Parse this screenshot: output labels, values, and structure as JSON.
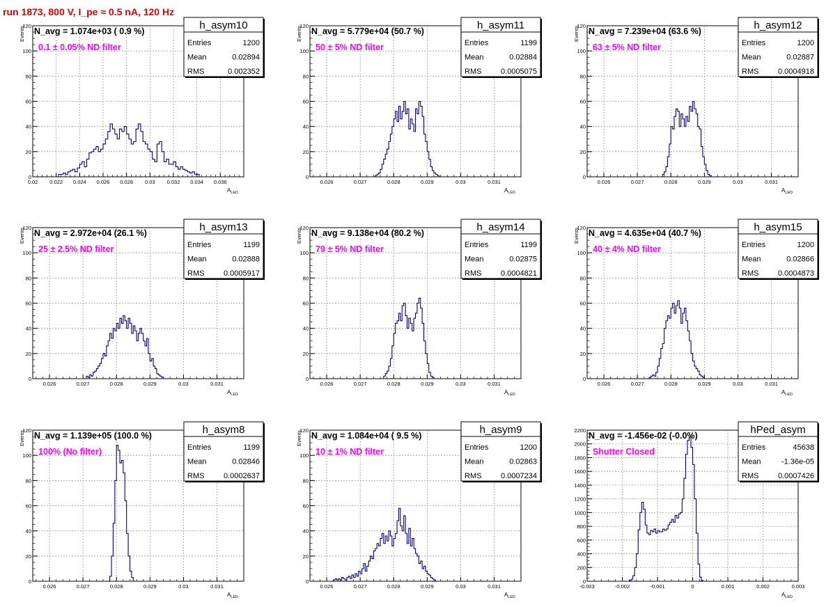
{
  "run_title": "run 1873,   800 V, I_pe ≈ 0.5 nA, 120 Hz",
  "line_color": "#000080",
  "note_color": "#ff00ff",
  "stats_labels": [
    "Entries",
    "Mean",
    "RMS"
  ],
  "chart_data": [
    {
      "type": "histogram",
      "name": "h_asym10",
      "navg": "N_avg = 1.074e+03 ( 0.9 %)",
      "note": "0.1 ± 0.05% ND filter",
      "stats": {
        "Entries": "1200",
        "Mean": "0.02894",
        "RMS": "0.002352"
      },
      "xlim": [
        0.02,
        0.038
      ],
      "xticks": [
        0.02,
        0.022,
        0.024,
        0.026,
        0.028,
        0.03,
        0.032,
        0.034,
        0.036
      ],
      "xtick_labels": [
        "0.02",
        "0.022",
        "0.024",
        "0.026",
        "0.028",
        "0.03",
        "0.032",
        "0.034",
        "0.036"
      ],
      "ylim": [
        0,
        120
      ],
      "yticks": [
        0,
        20,
        40,
        60,
        80,
        100,
        120
      ],
      "ytick_labels": [
        "0",
        "20",
        "40",
        "60",
        "80",
        "100",
        "120"
      ],
      "xlabel": "A",
      "xlabel_sub": "LED",
      "ylabel": "Events",
      "bins_x0": 0.0222,
      "bin_width": 0.0002,
      "counts": [
        2,
        2,
        3,
        2,
        4,
        5,
        6,
        4,
        7,
        10,
        12,
        8,
        14,
        19,
        20,
        22,
        24,
        20,
        22,
        26,
        30,
        36,
        42,
        38,
        34,
        30,
        38,
        36,
        40,
        34,
        30,
        26,
        28,
        38,
        42,
        36,
        28,
        26,
        22,
        20,
        14,
        12,
        26,
        28,
        20,
        12,
        14,
        10,
        10,
        12,
        8,
        6,
        8,
        6,
        5,
        4,
        3,
        4,
        2,
        2
      ]
    },
    {
      "type": "histogram",
      "name": "h_asym11",
      "navg": "N_avg = 5.779e+04 (50.7 %)",
      "note": "50 ± 5% ND filter",
      "stats": {
        "Entries": "1199",
        "Mean": "0.02884",
        "RMS": "0.0005075"
      },
      "xlim": [
        0.0255,
        0.0318
      ],
      "xticks": [
        0.026,
        0.027,
        0.028,
        0.029,
        0.03,
        0.031
      ],
      "xtick_labels": [
        "0.026",
        "0.027",
        "0.028",
        "0.029",
        "0.03",
        "0.031"
      ],
      "ylim": [
        0,
        120
      ],
      "yticks": [
        0,
        20,
        40,
        60,
        80,
        100,
        120
      ],
      "ytick_labels": [
        "0",
        "20",
        "40",
        "60",
        "80",
        "100",
        "120"
      ],
      "xlabel": "A",
      "xlabel_sub": "LED",
      "ylabel": "Events",
      "bins_x0": 0.02745,
      "bin_width": 5e-05,
      "counts": [
        1,
        2,
        3,
        6,
        10,
        14,
        18,
        22,
        28,
        34,
        40,
        46,
        52,
        44,
        56,
        46,
        52,
        60,
        50,
        54,
        38,
        46,
        42,
        36,
        54,
        50,
        60,
        56,
        48,
        34,
        28,
        20,
        14,
        8,
        5,
        3,
        2,
        1
      ]
    },
    {
      "type": "histogram",
      "name": "h_asym12",
      "navg": "N_avg = 7.239e+04 (63.6 %)",
      "note": "63 ± 5% ND filter",
      "stats": {
        "Entries": "1200",
        "Mean": "0.02887",
        "RMS": "0.0004918"
      },
      "xlim": [
        0.0255,
        0.0318
      ],
      "xticks": [
        0.026,
        0.027,
        0.028,
        0.029,
        0.03,
        0.031
      ],
      "xtick_labels": [
        "0.026",
        "0.027",
        "0.028",
        "0.029",
        "0.03",
        "0.031"
      ],
      "ylim": [
        0,
        120
      ],
      "yticks": [
        0,
        20,
        40,
        60,
        80,
        100,
        120
      ],
      "ytick_labels": [
        "0",
        "20",
        "40",
        "60",
        "80",
        "100",
        "120"
      ],
      "xlabel": "A",
      "xlabel_sub": "LED",
      "ylabel": "Events",
      "bins_x0": 0.02775,
      "bin_width": 5e-05,
      "counts": [
        2,
        4,
        8,
        16,
        26,
        40,
        38,
        48,
        54,
        52,
        40,
        50,
        46,
        40,
        48,
        44,
        56,
        52,
        60,
        54,
        50,
        40,
        38,
        24,
        16,
        10,
        5,
        2,
        1
      ]
    },
    {
      "type": "histogram",
      "name": "h_asym13",
      "navg": "N_avg = 2.972e+04 (26.1 %)",
      "note": "25 ± 2.5% ND filter",
      "stats": {
        "Entries": "1199",
        "Mean": "0.02888",
        "RMS": "0.0005917"
      },
      "xlim": [
        0.0255,
        0.0318
      ],
      "xticks": [
        0.026,
        0.027,
        0.028,
        0.029,
        0.03,
        0.031
      ],
      "xtick_labels": [
        "0.026",
        "0.027",
        "0.028",
        "0.029",
        "0.03",
        "0.031"
      ],
      "ylim": [
        0,
        120
      ],
      "yticks": [
        0,
        20,
        40,
        60,
        80,
        100,
        120
      ],
      "ytick_labels": [
        "0",
        "20",
        "40",
        "60",
        "80",
        "100",
        "120"
      ],
      "xlabel": "A",
      "xlabel_sub": "LED",
      "ylabel": "Events",
      "bins_x0": 0.0271,
      "bin_width": 5e-05,
      "counts": [
        2,
        1,
        3,
        2,
        5,
        6,
        8,
        10,
        12,
        16,
        20,
        18,
        26,
        30,
        36,
        32,
        40,
        38,
        44,
        40,
        48,
        44,
        50,
        46,
        40,
        48,
        44,
        36,
        42,
        38,
        30,
        36,
        40,
        36,
        30,
        26,
        32,
        20,
        14,
        16,
        10,
        8,
        4,
        3,
        2,
        1
      ]
    },
    {
      "type": "histogram",
      "name": "h_asym14",
      "navg": "N_avg = 9.138e+04 (80.2 %)",
      "note": "79 ± 5% ND filter",
      "stats": {
        "Entries": "1199",
        "Mean": "0.02875",
        "RMS": "0.0004821"
      },
      "xlim": [
        0.0255,
        0.0318
      ],
      "xticks": [
        0.026,
        0.027,
        0.028,
        0.029,
        0.03,
        0.031
      ],
      "xtick_labels": [
        "0.026",
        "0.027",
        "0.028",
        "0.029",
        "0.03",
        "0.031"
      ],
      "ylim": [
        0,
        120
      ],
      "yticks": [
        0,
        20,
        40,
        60,
        80,
        100,
        120
      ],
      "ytick_labels": [
        "0",
        "20",
        "40",
        "60",
        "80",
        "100",
        "120"
      ],
      "xlabel": "A",
      "xlabel_sub": "LED",
      "ylabel": "Events",
      "bins_x0": 0.0277,
      "bin_width": 5e-05,
      "counts": [
        2,
        4,
        6,
        10,
        16,
        26,
        36,
        44,
        46,
        52,
        46,
        58,
        60,
        50,
        40,
        48,
        44,
        38,
        48,
        52,
        60,
        64,
        56,
        44,
        30,
        20,
        12,
        5,
        2,
        1
      ]
    },
    {
      "type": "histogram",
      "name": "h_asym15",
      "navg": "N_avg = 4.635e+04 (40.7 %)",
      "note": "40 ± 4% ND filter",
      "stats": {
        "Entries": "1200",
        "Mean": "0.02866",
        "RMS": "0.0004873"
      },
      "xlim": [
        0.0255,
        0.0318
      ],
      "xticks": [
        0.026,
        0.027,
        0.028,
        0.029,
        0.03,
        0.031
      ],
      "xtick_labels": [
        "0.026",
        "0.027",
        "0.028",
        "0.029",
        "0.03",
        "0.031"
      ],
      "ylim": [
        0,
        120
      ],
      "yticks": [
        0,
        20,
        40,
        60,
        80,
        100,
        120
      ],
      "ytick_labels": [
        "0",
        "20",
        "40",
        "60",
        "80",
        "100",
        "120"
      ],
      "xlabel": "A",
      "xlabel_sub": "LED",
      "ylabel": "Events",
      "bins_x0": 0.02735,
      "bin_width": 5e-05,
      "counts": [
        1,
        2,
        3,
        2,
        5,
        10,
        16,
        24,
        28,
        40,
        46,
        50,
        48,
        56,
        60,
        52,
        58,
        62,
        56,
        44,
        52,
        56,
        46,
        38,
        30,
        20,
        14,
        10,
        8,
        6,
        3,
        2,
        1
      ]
    },
    {
      "type": "histogram",
      "name": "h_asym8",
      "navg": "N_avg = 1.139e+05 (100.0 %)",
      "note": "100% (No filter)",
      "stats": {
        "Entries": "1199",
        "Mean": "0.02846",
        "RMS": "0.0002637"
      },
      "xlim": [
        0.0255,
        0.0318
      ],
      "xticks": [
        0.026,
        0.027,
        0.028,
        0.029,
        0.03,
        0.031
      ],
      "xtick_labels": [
        "0.026",
        "0.027",
        "0.028",
        "0.029",
        "0.03",
        "0.031"
      ],
      "ylim": [
        0,
        120
      ],
      "yticks": [
        0,
        20,
        40,
        60,
        80,
        100,
        120
      ],
      "ytick_labels": [
        "0",
        "20",
        "40",
        "60",
        "80",
        "100",
        "120"
      ],
      "xlabel": "A",
      "xlabel_sub": "LED",
      "ylabel": "Events",
      "bins_x0": 0.0278,
      "bin_width": 5e-05,
      "counts": [
        4,
        20,
        46,
        80,
        108,
        104,
        94,
        96,
        86,
        64,
        38,
        20,
        8,
        3
      ]
    },
    {
      "type": "histogram",
      "name": "h_asym9",
      "navg": "N_avg = 1.084e+04 ( 9.5 %)",
      "note": "10 ± 1% ND filter",
      "stats": {
        "Entries": "1200",
        "Mean": "0.02863",
        "RMS": "0.0007234"
      },
      "xlim": [
        0.0255,
        0.0318
      ],
      "xticks": [
        0.026,
        0.027,
        0.028,
        0.029,
        0.03,
        0.031
      ],
      "xtick_labels": [
        "0.026",
        "0.027",
        "0.028",
        "0.029",
        "0.03",
        "0.031"
      ],
      "ylim": [
        0,
        120
      ],
      "yticks": [
        0,
        20,
        40,
        60,
        80,
        100,
        120
      ],
      "ytick_labels": [
        "0",
        "20",
        "40",
        "60",
        "80",
        "100",
        "120"
      ],
      "xlabel": "A",
      "xlabel_sub": "LED",
      "ylabel": "Events",
      "bins_x0": 0.0262,
      "bin_width": 5e-05,
      "counts": [
        1,
        2,
        1,
        2,
        1,
        3,
        2,
        1,
        3,
        4,
        2,
        5,
        3,
        6,
        4,
        8,
        6,
        10,
        14,
        8,
        12,
        16,
        20,
        18,
        24,
        26,
        30,
        28,
        34,
        38,
        30,
        36,
        32,
        40,
        36,
        28,
        34,
        38,
        48,
        58,
        44,
        40,
        52,
        38,
        30,
        42,
        28,
        34,
        26,
        22,
        20,
        14,
        16,
        10,
        12,
        8,
        6,
        5,
        3,
        2,
        1
      ]
    },
    {
      "type": "histogram",
      "name": "hPed_asym",
      "navg": "N_avg = -1.456e-02 (-0.0%)",
      "note": "Shutter Closed",
      "stats": {
        "Entries": "45638",
        "Mean": "-1.36e-05",
        "RMS": "0.0007426"
      },
      "xlim": [
        -0.003,
        0.003
      ],
      "xticks": [
        -0.003,
        -0.002,
        -0.001,
        0,
        0.001,
        0.002,
        0.003
      ],
      "xtick_labels": [
        "-0.003",
        "-0.002",
        "-0.001",
        "0",
        "0.001",
        "0.002",
        "0.003"
      ],
      "ylim": [
        0,
        2200
      ],
      "yticks": [
        0,
        200,
        400,
        600,
        800,
        1000,
        1200,
        1400,
        1600,
        1800,
        2000,
        2200
      ],
      "ytick_labels": [
        "0",
        "200",
        "400",
        "600",
        "800",
        "1000",
        "1200",
        "1400",
        "1600",
        "1800",
        "2000",
        "2200"
      ],
      "xlabel": "A",
      "xlabel_sub": "LED",
      "ylabel": "",
      "bins_x0": -0.0018,
      "bin_width": 5e-05,
      "counts": [
        10,
        30,
        80,
        200,
        400,
        750,
        1000,
        1150,
        1050,
        820,
        700,
        680,
        740,
        720,
        760,
        700,
        740,
        720,
        720,
        760,
        740,
        760,
        820,
        860,
        900,
        860,
        960,
        920,
        980,
        1000,
        1200,
        1500,
        1850,
        2050,
        2100,
        1950,
        1700,
        1200,
        700,
        250,
        60,
        10
      ]
    }
  ]
}
